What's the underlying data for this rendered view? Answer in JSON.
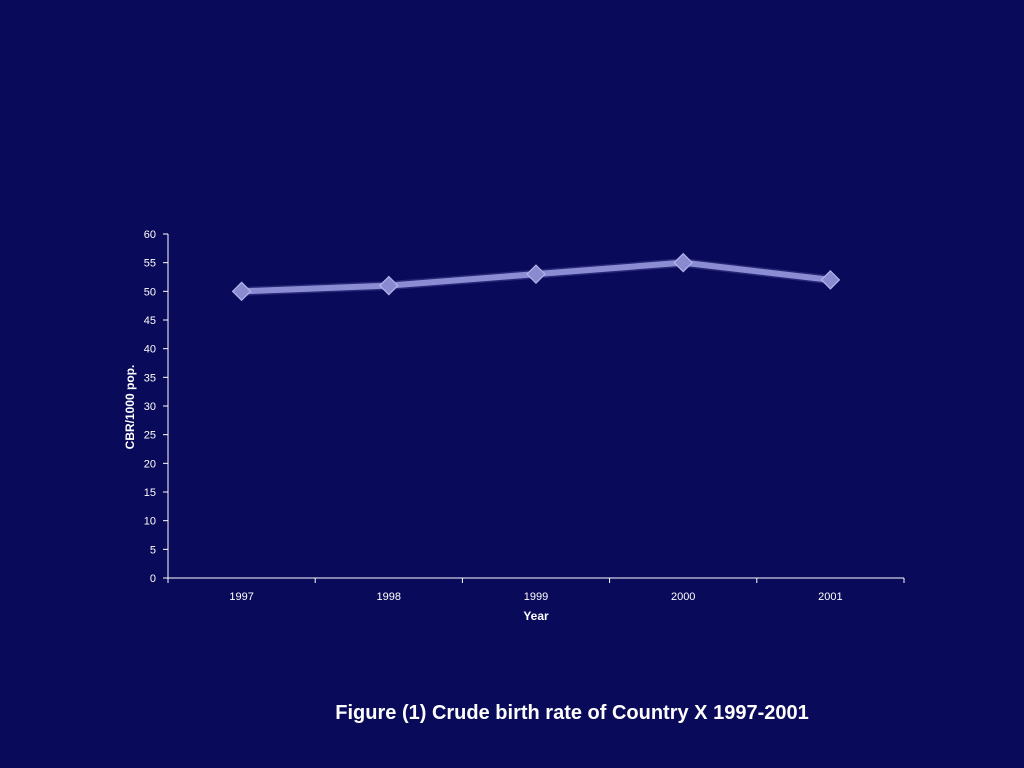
{
  "caption": "Figure (1) Crude birth rate of Country X 1997-2001",
  "colors": {
    "background": "#0a0a5a",
    "line": "#8c8cd4",
    "marker": "#8a8ad0",
    "axis": "#ffffff",
    "text": "#ffffff"
  },
  "chart_data": {
    "type": "line",
    "title": "",
    "xlabel": "Year",
    "ylabel": "CBR/1000 pop.",
    "categories": [
      "1997",
      "1998",
      "1999",
      "2000",
      "2001"
    ],
    "series": [
      {
        "values": [
          50,
          51,
          53,
          55,
          52
        ],
        "marker": "diamond"
      }
    ],
    "ylim": [
      0,
      60
    ],
    "yticks": [
      0,
      5,
      10,
      15,
      20,
      25,
      30,
      35,
      40,
      45,
      50,
      55,
      60
    ],
    "grid": false,
    "legend": "none"
  }
}
